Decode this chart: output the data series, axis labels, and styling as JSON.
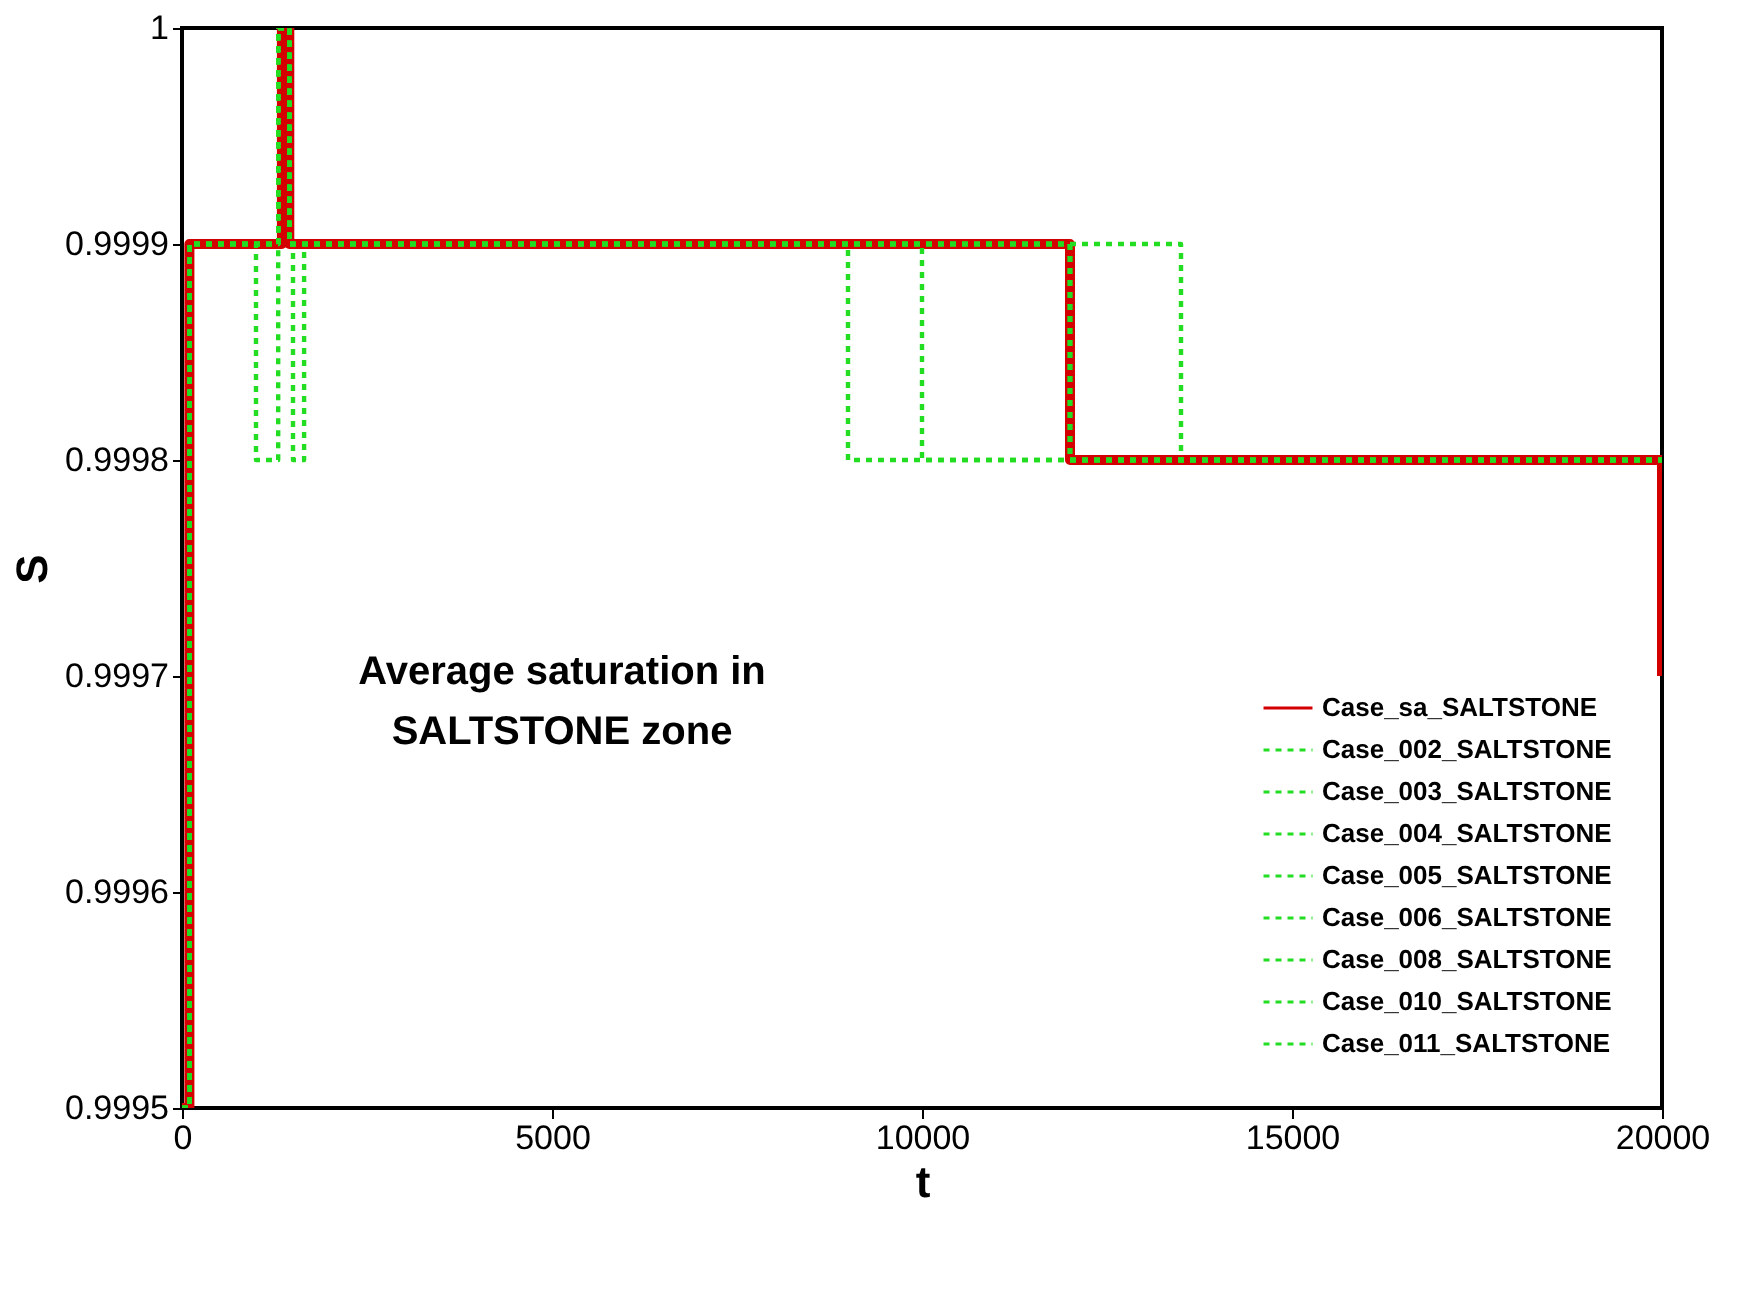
{
  "chart_data": {
    "type": "step",
    "xlabel": "t",
    "ylabel": "S",
    "xlim": [
      0,
      20000
    ],
    "xticks": [
      0,
      5000,
      10000,
      15000,
      20000
    ],
    "ylim": [
      0.9995,
      1.0
    ],
    "yticks": [
      0.9995,
      0.9996,
      0.9997,
      0.9998,
      0.9999,
      {
        "value": 1.0,
        "label": "1"
      }
    ],
    "grid": false,
    "legend": "bottom right",
    "annotations": [
      "Average saturation in\nSALTSTONE zone"
    ],
    "series": [
      {
        "name": "Case_sa_SALTSTONE",
        "color": "#d40000",
        "line_style": "solid",
        "x": [
          0,
          100,
          1350,
          1450,
          12000,
          20000,
          20000
        ],
        "values": [
          0.9995,
          0.9999,
          1.0,
          0.9999,
          0.9998,
          0.9998,
          0.9997
        ]
      },
      {
        "name": "Case_002_SALTSTONE",
        "color": "#22dd22",
        "line_style": "dotted",
        "x": [
          0,
          100,
          1000,
          1300,
          1450,
          12000,
          20000
        ],
        "values": [
          0.9995,
          0.9999,
          0.9998,
          1.0,
          0.9999,
          0.9998,
          0.9998
        ]
      },
      {
        "name": "Case_003_SALTSTONE",
        "color": "#22dd22",
        "line_style": "dotted",
        "x": [
          0,
          100,
          1300,
          1450,
          1500,
          1650,
          12000,
          20000
        ],
        "values": [
          0.9995,
          0.9999,
          1.0,
          0.9999,
          0.9998,
          0.9999,
          0.9998,
          0.9998
        ]
      },
      {
        "name": "Case_004_SALTSTONE",
        "color": "#22dd22",
        "line_style": "dotted",
        "x": [
          0,
          100,
          1300,
          1450,
          9000,
          20000
        ],
        "values": [
          0.9995,
          0.9999,
          1.0,
          0.9999,
          0.9998,
          0.9998
        ]
      },
      {
        "name": "Case_005_SALTSTONE",
        "color": "#22dd22",
        "line_style": "dotted",
        "x": [
          0,
          100,
          1300,
          1450,
          10000,
          20000
        ],
        "values": [
          0.9995,
          0.9999,
          1.0,
          0.9999,
          0.9998,
          0.9998
        ]
      },
      {
        "name": "Case_006_SALTSTONE",
        "color": "#22dd22",
        "line_style": "dotted",
        "x": [
          0,
          100,
          1300,
          1450,
          13500,
          20000
        ],
        "values": [
          0.9995,
          0.9999,
          1.0,
          0.9999,
          0.9998,
          0.9998
        ]
      },
      {
        "name": "Case_008_SALTSTONE",
        "color": "#22dd22",
        "line_style": "dotted",
        "x": [
          0,
          100,
          1300,
          1450,
          12000,
          20000
        ],
        "values": [
          0.9995,
          0.9999,
          1.0,
          0.9999,
          0.9998,
          0.9998
        ]
      },
      {
        "name": "Case_010_SALTSTONE",
        "color": "#22dd22",
        "line_style": "dotted",
        "x": [
          0,
          100,
          1300,
          1450,
          12000,
          20000
        ],
        "values": [
          0.9995,
          0.9999,
          1.0,
          0.9999,
          0.9998,
          0.9998
        ]
      },
      {
        "name": "Case_011_SALTSTONE",
        "color": "#22dd22",
        "line_style": "dotted",
        "x": [
          0,
          100,
          1300,
          1450,
          12000,
          20000
        ],
        "values": [
          0.9995,
          0.9999,
          1.0,
          0.9999,
          0.9998,
          0.9998
        ]
      }
    ]
  }
}
